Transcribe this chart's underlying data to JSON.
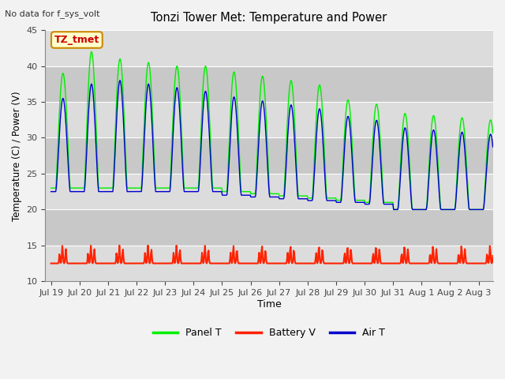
{
  "title": "Tonzi Tower Met: Temperature and Power",
  "top_left_text": "No data for f_sys_volt",
  "ylabel": "Temperature (C) / Power (V)",
  "xlabel": "Time",
  "ylim": [
    10,
    45
  ],
  "yticks": [
    10,
    15,
    20,
    25,
    30,
    35,
    40,
    45
  ],
  "legend_labels": [
    "Panel T",
    "Battery V",
    "Air T"
  ],
  "legend_colors": [
    "#00ee00",
    "#ff2000",
    "#0000cc"
  ],
  "annotation_text": "TZ_tmet",
  "annotation_bg": "#ffffcc",
  "annotation_border": "#cc8800",
  "tick_labels": [
    "Jul 19",
    "Jul 20",
    "Jul 21",
    "Jul 22",
    "Jul 23",
    "Jul 24",
    "Jul 25",
    "Jul 26",
    "Jul 27",
    "Jul 28",
    "Jul 29",
    "Jul 30",
    "Jul 31",
    "Aug 1",
    "Aug 2",
    "Aug 3"
  ],
  "panel_T_color": "#00ee00",
  "battery_V_color": "#ff2200",
  "air_T_color": "#0000cc",
  "band_colors": [
    "#dcdcdc",
    "#c8c8c8"
  ],
  "fig_bg": "#f2f2f2"
}
